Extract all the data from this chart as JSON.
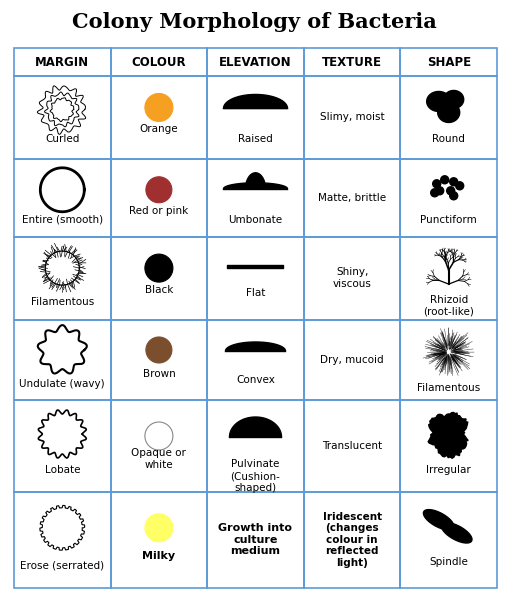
{
  "title": "Colony Morphology of Bacteria",
  "headers": [
    "MARGIN",
    "COLOUR",
    "ELEVATION",
    "TEXTURE",
    "SHAPE"
  ],
  "rows": [
    {
      "margin_label": "Curled",
      "colour_label": "Orange",
      "colour_hex": "#F5A020",
      "elevation_label": "Raised",
      "texture_label": "Slimy, moist",
      "shape_label": "Round"
    },
    {
      "margin_label": "Entire (smooth)",
      "colour_label": "Red or pink",
      "colour_hex": "#A03030",
      "elevation_label": "Umbonate",
      "texture_label": "Matte, brittle",
      "shape_label": "Punctiform"
    },
    {
      "margin_label": "Filamentous",
      "colour_label": "Black",
      "colour_hex": "#000000",
      "elevation_label": "Flat",
      "texture_label": "Shiny,\nviscous",
      "shape_label": "Rhizoid\n(root-like)"
    },
    {
      "margin_label": "Undulate (wavy)",
      "colour_label": "Brown",
      "colour_hex": "#7B4F2E",
      "elevation_label": "Convex",
      "texture_label": "Dry, mucoid",
      "shape_label": "Filamentous"
    },
    {
      "margin_label": "Lobate",
      "colour_label": "Opaque or\nwhite",
      "colour_hex": "#FFFFFF",
      "elevation_label": "Pulvinate\n(Cushion-\nshaped)",
      "texture_label": "Translucent",
      "shape_label": "Irregular"
    },
    {
      "margin_label": "Erose (serrated)",
      "colour_label": "Milky",
      "colour_hex": "#FFFF66",
      "elevation_label": "Growth into\nculture\nmedium",
      "texture_label": "Iridescent\n(changes\ncolour in\nreflected\nlight)",
      "shape_label": "Spindle"
    }
  ],
  "grid_color": "#5B9BD5",
  "bg_color": "#FFFFFF",
  "title_fontsize": 15,
  "header_fontsize": 8.5,
  "cell_fontsize": 7.5
}
